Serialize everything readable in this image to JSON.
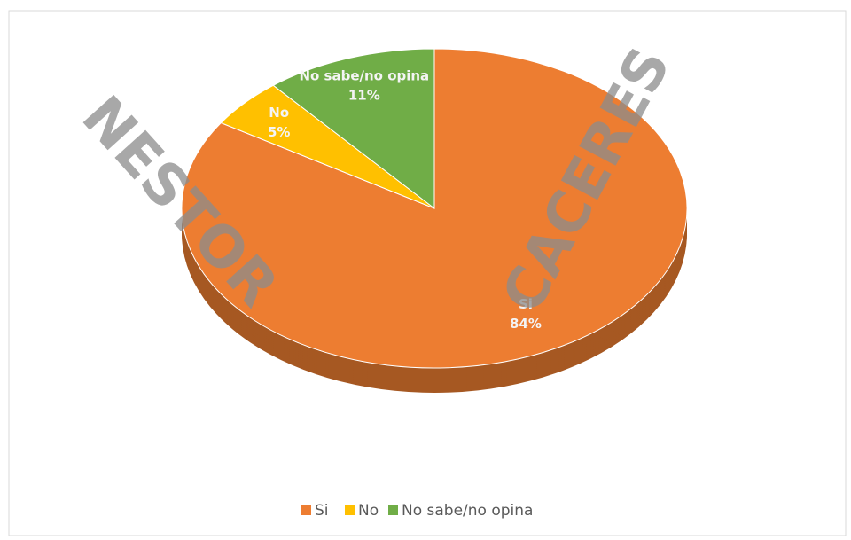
{
  "chart_data": {
    "type": "pie",
    "categories": [
      "Si",
      "No",
      "No sabe/no opina"
    ],
    "values": [
      84,
      5,
      11
    ],
    "value_labels": [
      "84%",
      "5%",
      "11%"
    ],
    "colors": [
      "#ed7d31",
      "#ffc000",
      "#70ad47"
    ],
    "legend": "bottom"
  },
  "watermark": [
    "NESTOR",
    "CACERES"
  ]
}
